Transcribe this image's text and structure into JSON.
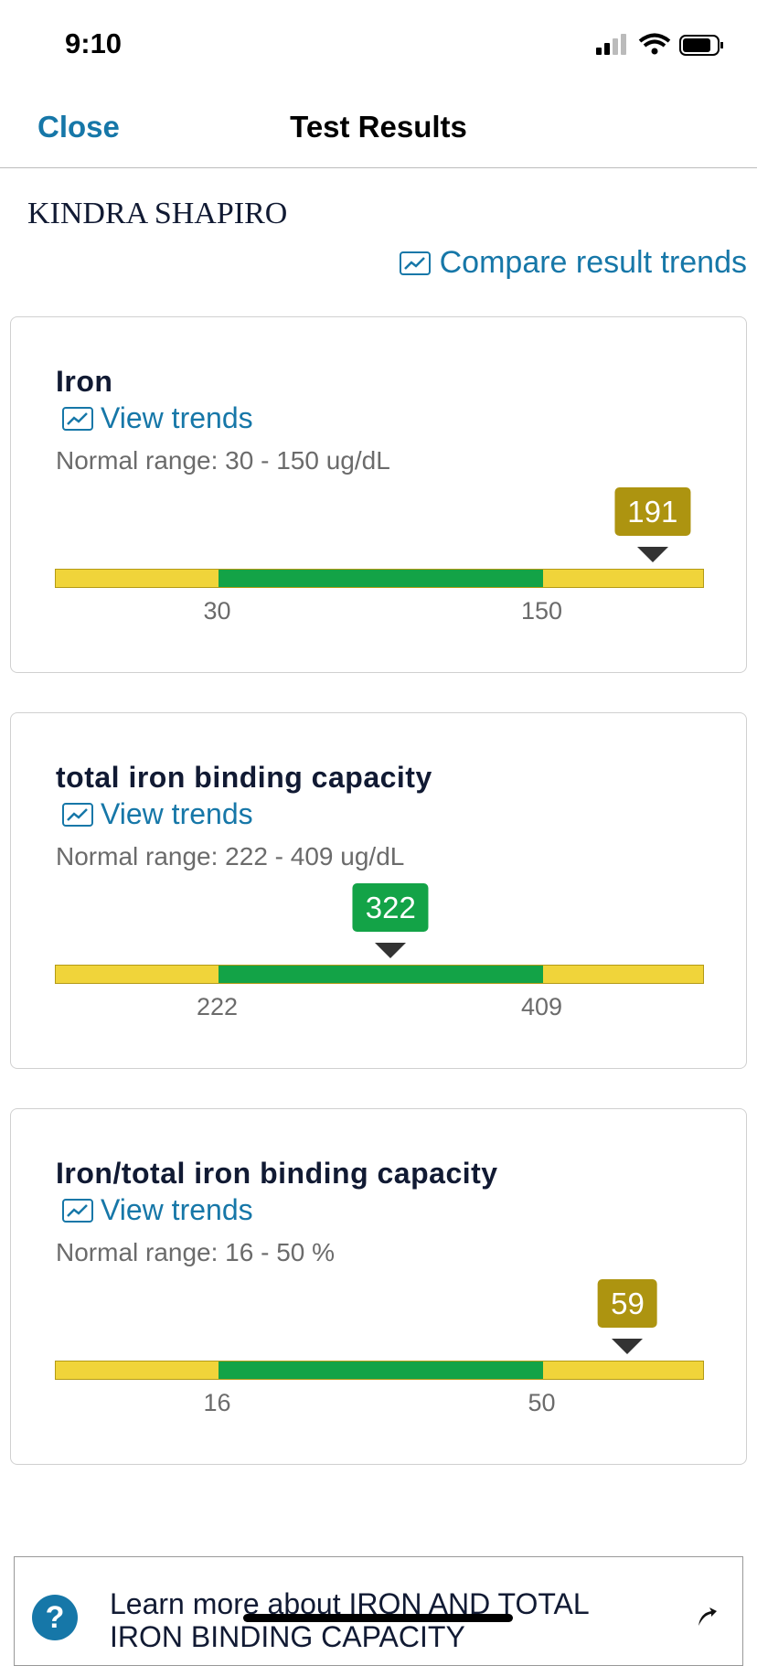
{
  "status_bar": {
    "time": "9:10"
  },
  "nav": {
    "close": "Close",
    "title": "Test Results"
  },
  "patient_name": "KINDRA SHAPIRO",
  "compare_link": "Compare result trends",
  "results": [
    {
      "name": "Iron",
      "trends_link": "View trends",
      "normal_range": "Normal range: 30 - 150 ug/dL",
      "value": 191,
      "low": 30,
      "high": 150
    },
    {
      "name": "total iron binding capacity",
      "trends_link": "View trends",
      "normal_range": "Normal range: 222 - 409 ug/dL",
      "value": 322,
      "low": 222,
      "high": 409
    },
    {
      "name": "Iron/total iron binding capacity",
      "trends_link": "View trends",
      "normal_range": "Normal range: 16 - 50 %",
      "value": 59,
      "low": 16,
      "high": 50
    }
  ],
  "learn_more": "Learn more about IRON AND TOTAL IRON BINDING CAPACITY"
}
